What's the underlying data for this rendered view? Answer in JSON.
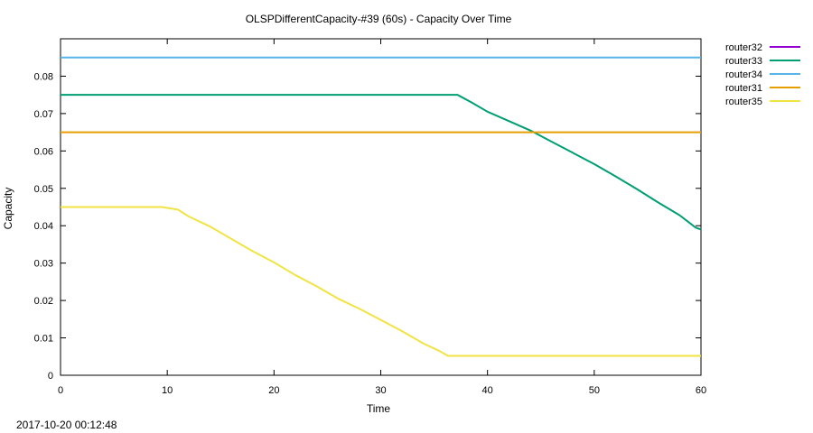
{
  "chart_data": {
    "type": "line",
    "title": "OLSPDifferentCapacity-#39 (60s) - Capacity Over Time",
    "xlabel": "Time",
    "ylabel": "Capacity",
    "footer": "2017-10-20 00:12:48",
    "xlim": [
      0,
      60
    ],
    "ylim": [
      0,
      0.09
    ],
    "xticks": [
      0,
      10,
      20,
      30,
      40,
      50,
      60
    ],
    "yticks": [
      0,
      0.01,
      0.02,
      0.03,
      0.04,
      0.05,
      0.06,
      0.07,
      0.08
    ],
    "ytick_labels": [
      "0",
      "0.01",
      "0.02",
      "0.03",
      "0.04",
      "0.05",
      "0.06",
      "0.07",
      "0.08"
    ],
    "grid": false,
    "legend_position": "outside-right",
    "series": [
      {
        "name": "router32",
        "color": "#9400d3",
        "x": [],
        "y": []
      },
      {
        "name": "router33",
        "color": "#009e73",
        "x": [
          0,
          37.2,
          38.5,
          40,
          42,
          44,
          45,
          46,
          48,
          50,
          52,
          54,
          56,
          58,
          59.5,
          60
        ],
        "y": [
          0.075,
          0.075,
          0.073,
          0.0705,
          0.068,
          0.0655,
          0.064,
          0.0625,
          0.0595,
          0.0565,
          0.0532,
          0.0498,
          0.0462,
          0.0428,
          0.0395,
          0.039
        ]
      },
      {
        "name": "router34",
        "color": "#56b4e9",
        "x": [
          0,
          60
        ],
        "y": [
          0.085,
          0.085
        ]
      },
      {
        "name": "router31",
        "color": "#e69f00",
        "x": [
          0,
          60
        ],
        "y": [
          0.065,
          0.065
        ]
      },
      {
        "name": "router35",
        "color": "#f0e442",
        "x": [
          0,
          9.5,
          11,
          12,
          14,
          16,
          18,
          20,
          22,
          24,
          26,
          28,
          30,
          32,
          34,
          35.5,
          36.3,
          60
        ],
        "y": [
          0.045,
          0.045,
          0.0443,
          0.0425,
          0.0398,
          0.0365,
          0.0332,
          0.0302,
          0.0268,
          0.0238,
          0.0205,
          0.0178,
          0.0148,
          0.0118,
          0.0085,
          0.0065,
          0.0052,
          0.0052
        ]
      }
    ]
  }
}
